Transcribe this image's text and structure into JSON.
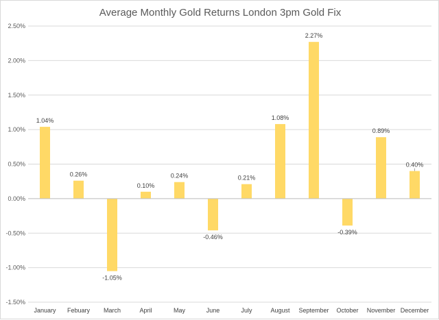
{
  "chart_data": {
    "type": "bar",
    "title": "Average Monthly Gold Returns London 3pm Gold Fix",
    "xlabel": "",
    "ylabel": "",
    "categories": [
      "January",
      "Febuary",
      "March",
      "April",
      "May",
      "June",
      "July",
      "August",
      "September",
      "October",
      "November",
      "December"
    ],
    "values": [
      1.04,
      0.26,
      -1.05,
      0.1,
      0.24,
      -0.46,
      0.21,
      1.08,
      2.27,
      -0.39,
      0.89,
      0.4
    ],
    "data_labels": [
      "1.04%",
      "0.26%",
      "-1.05%",
      "0.10%",
      "0.24%",
      "-0.46%",
      "0.21%",
      "1.08%",
      "2.27%",
      "-0.39%",
      "0.89%",
      "0.40%"
    ],
    "ylim": [
      -1.5,
      2.5
    ],
    "yticks": [
      2.5,
      2.0,
      1.5,
      1.0,
      0.5,
      0.0,
      -0.5,
      -1.0,
      -1.5
    ],
    "ytick_labels": [
      "2.50%",
      "2.00%",
      "1.50%",
      "1.00%",
      "0.50%",
      "0.00%",
      "-0.50%",
      "-1.00%",
      "-1.50%"
    ],
    "grid": true,
    "legend": "none",
    "bar_color": "#FFD966",
    "grid_color": "#D9D9D9"
  }
}
